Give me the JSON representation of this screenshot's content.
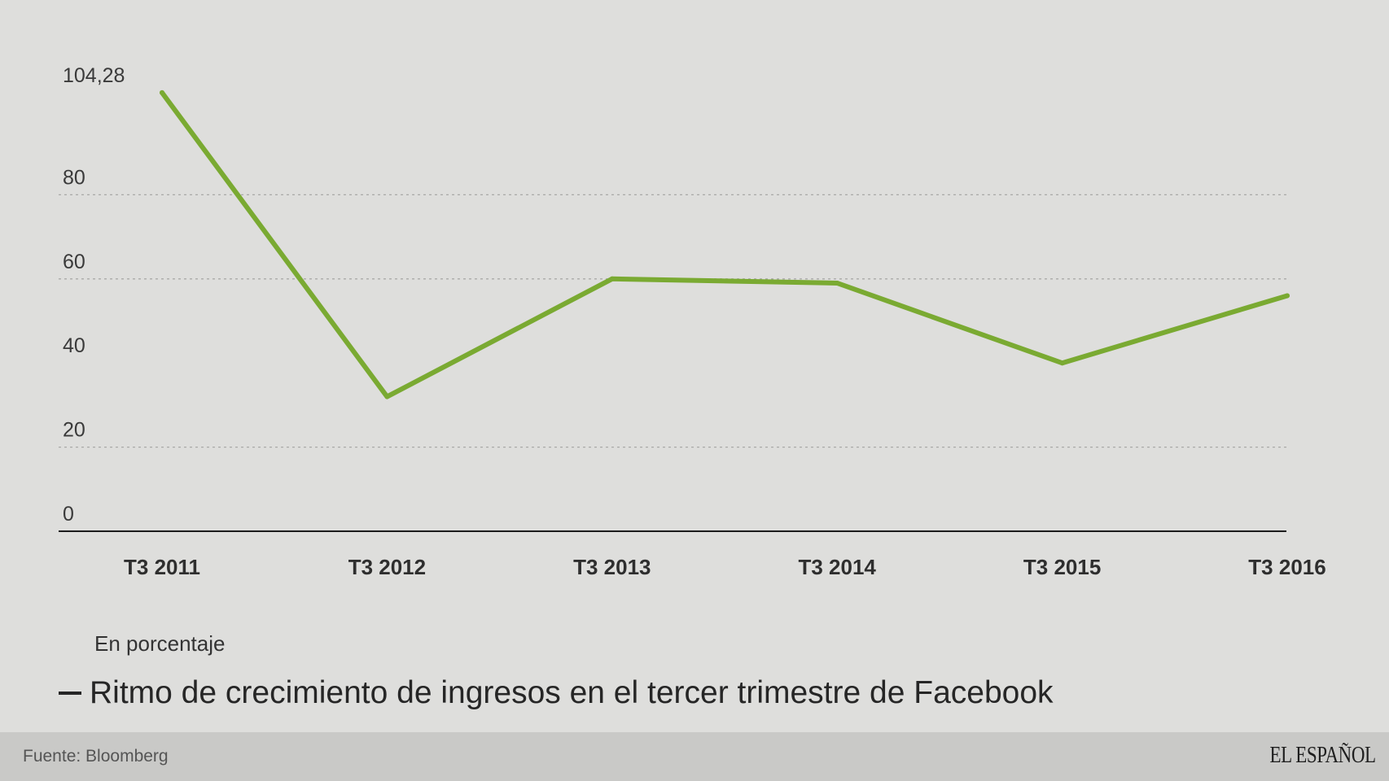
{
  "chart_data": {
    "type": "line",
    "categories": [
      "T3 2011",
      "T3 2012",
      "T3 2013",
      "T3 2014",
      "T3 2015",
      "T3 2016"
    ],
    "series": [
      {
        "values": [
          104.28,
          32,
          60,
          59,
          40,
          56
        ]
      }
    ],
    "y_ticks": [
      {
        "value": 104.28,
        "label": "104,28"
      },
      {
        "value": 80,
        "label": "80"
      },
      {
        "value": 60,
        "label": "60"
      },
      {
        "value": 40,
        "label": "40"
      },
      {
        "value": 20,
        "label": "20"
      },
      {
        "value": 0,
        "label": "0"
      }
    ],
    "gridlines": [
      80,
      60,
      20
    ],
    "ylim": [
      0,
      110
    ],
    "line_color": "#7aaa32",
    "unit_note": "En porcentaje",
    "legend": "Ritmo de crecimiento de ingresos en el tercer trimestre de Facebook"
  },
  "footer": {
    "source": "Fuente: Bloomberg",
    "brand": "EL ESPAÑOL"
  }
}
